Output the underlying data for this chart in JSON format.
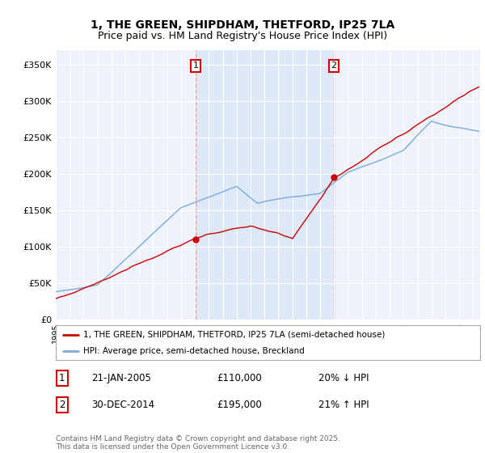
{
  "title_line1": "1, THE GREEN, SHIPDHAM, THETFORD, IP25 7LA",
  "title_line2": "Price paid vs. HM Land Registry's House Price Index (HPI)",
  "ylabel_ticks": [
    "£0",
    "£50K",
    "£100K",
    "£150K",
    "£200K",
    "£250K",
    "£300K",
    "£350K"
  ],
  "ytick_vals": [
    0,
    50000,
    100000,
    150000,
    200000,
    250000,
    300000,
    350000
  ],
  "ylim": [
    0,
    370000
  ],
  "xlim_start": 1995.0,
  "xlim_end": 2025.5,
  "legend_entry1": "1, THE GREEN, SHIPDHAM, THETFORD, IP25 7LA (semi-detached house)",
  "legend_entry2": "HPI: Average price, semi-detached house, Breckland",
  "annotation1_date": "21-JAN-2005",
  "annotation1_price": "£110,000",
  "annotation1_hpi": "20% ↓ HPI",
  "annotation2_date": "30-DEC-2014",
  "annotation2_price": "£195,000",
  "annotation2_hpi": "21% ↑ HPI",
  "sale1_t": 2005.06,
  "sale1_y": 110000,
  "sale2_t": 2014.99,
  "sale2_y": 195000,
  "sale_color": "#cc0000",
  "hpi_color": "#7aaadd",
  "shade_color": "#dde8f8",
  "vline_color": "#ff8888",
  "background_color": "#ffffff",
  "plot_bg_color": "#eef2fb",
  "footer_text": "Contains HM Land Registry data © Crown copyright and database right 2025.\nThis data is licensed under the Open Government Licence v3.0.",
  "title_fontsize": 10,
  "subtitle_fontsize": 9
}
